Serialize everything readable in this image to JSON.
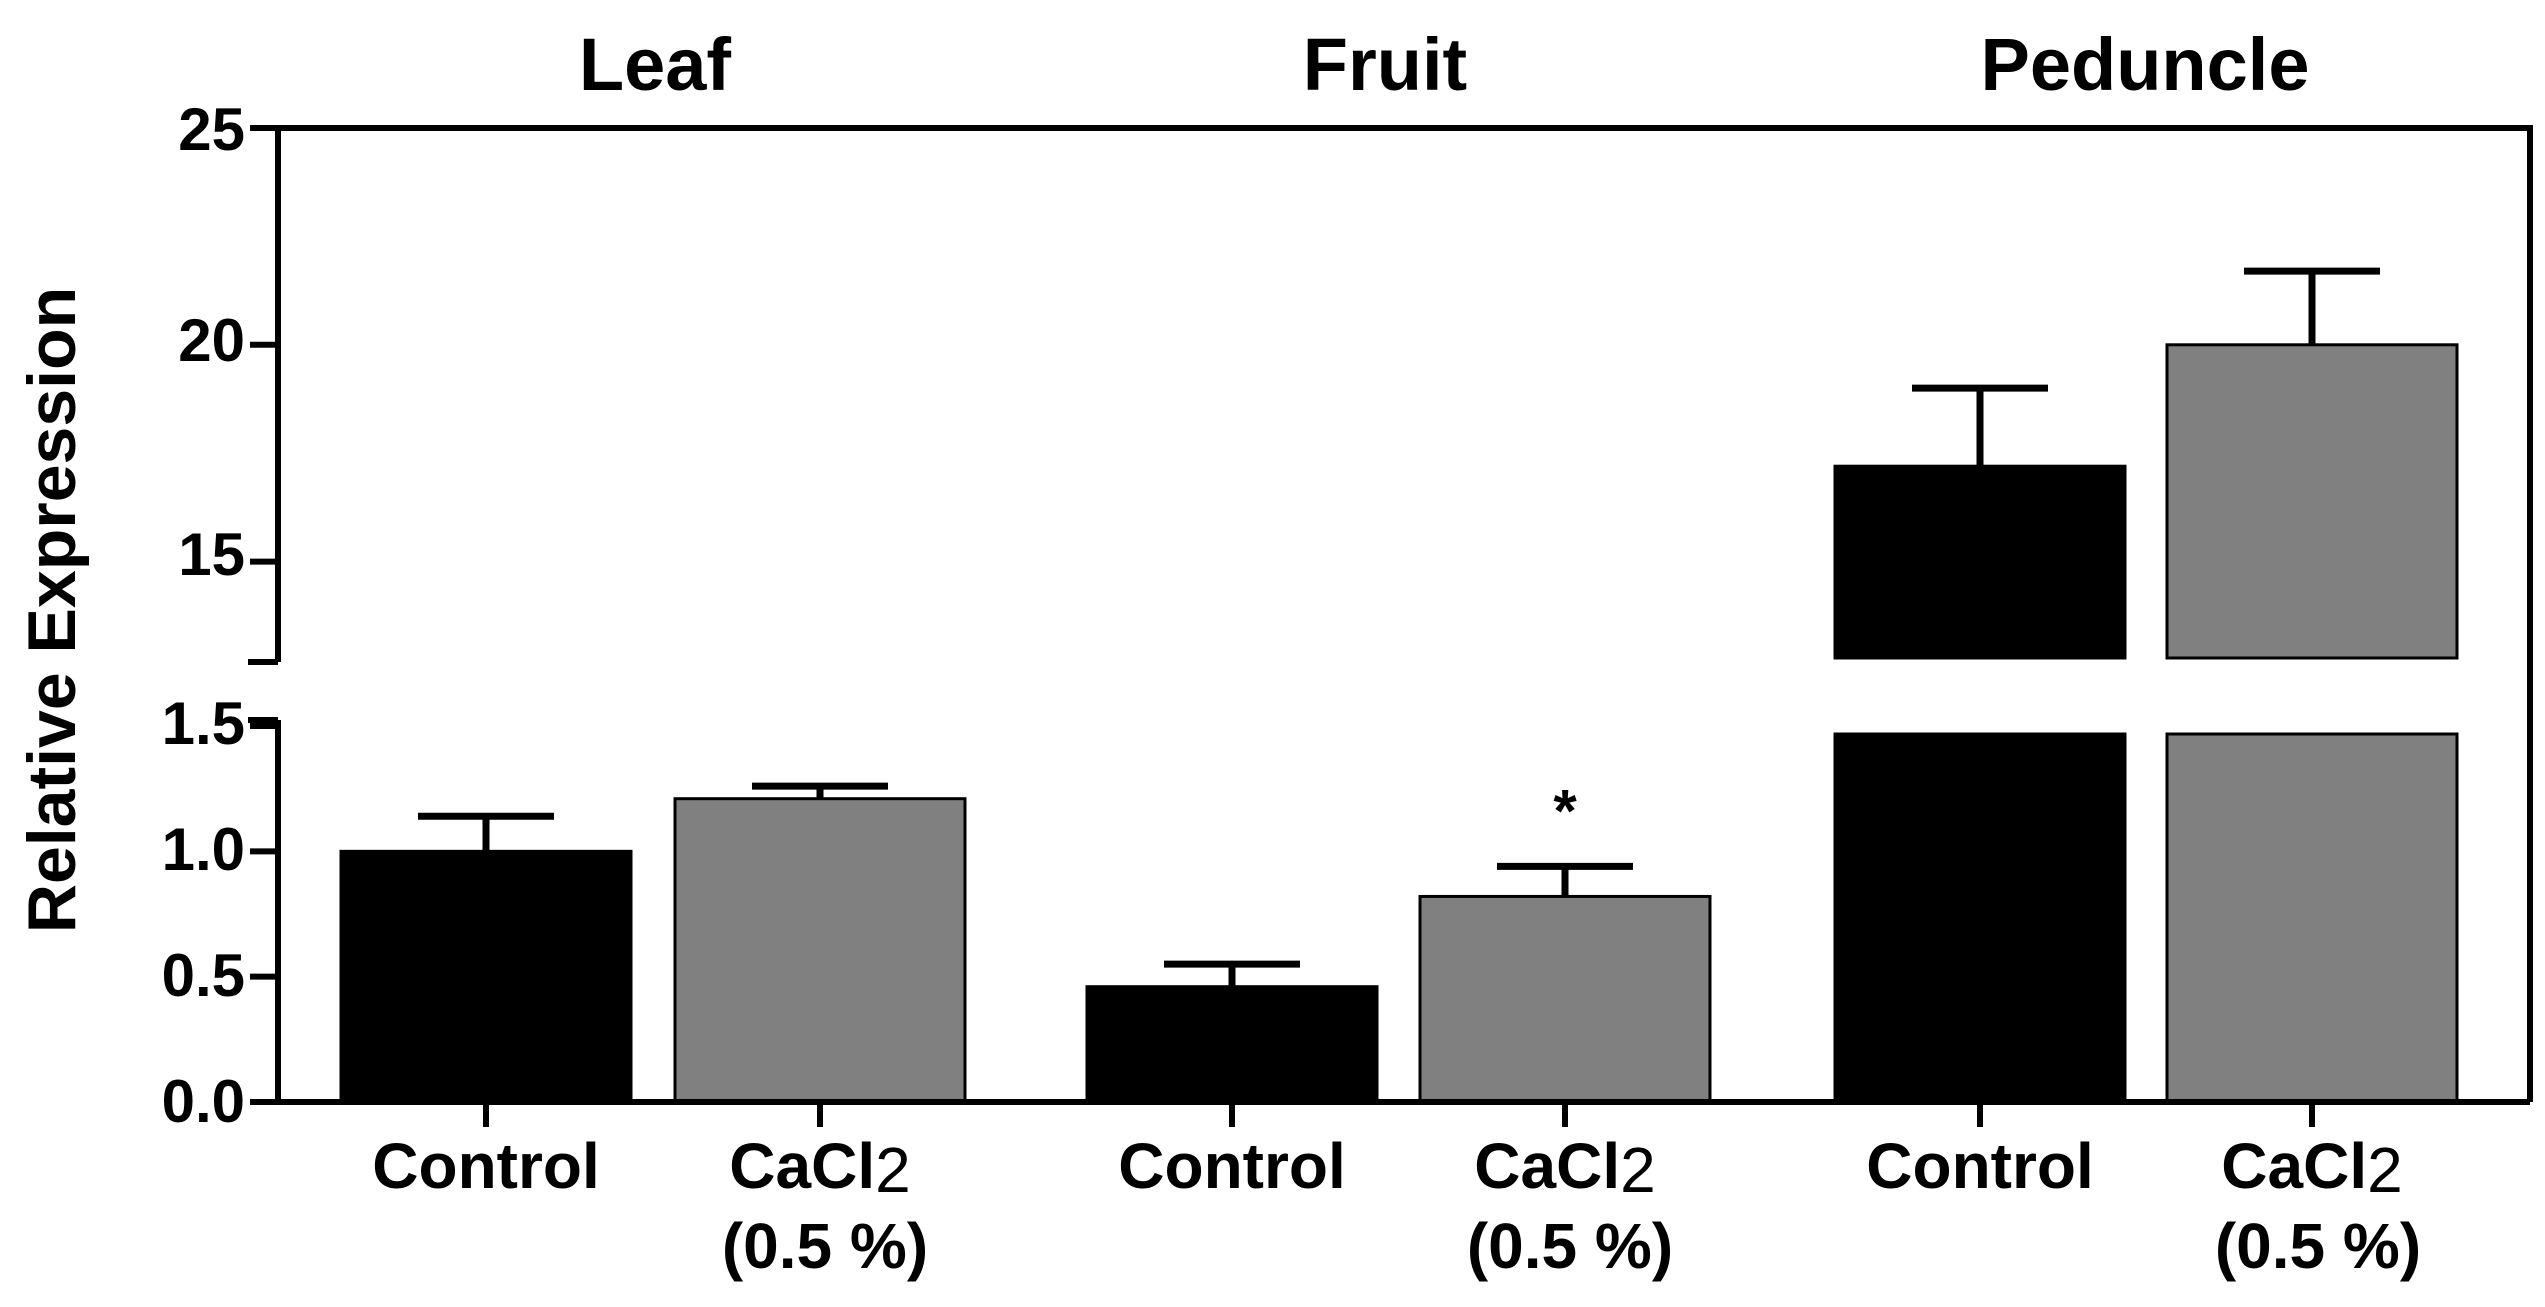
{
  "chart_data": {
    "type": "bar",
    "ylabel": "Relative Expression",
    "axis_break": true,
    "lower_range": [
      0,
      1.5
    ],
    "upper_range": [
      12.5,
      25
    ],
    "lower_ticks": [
      "0.0",
      "0.5",
      "1.0",
      "1.5"
    ],
    "upper_ticks": [
      "15",
      "20",
      "25"
    ],
    "groups": [
      {
        "title": "Leaf",
        "bars": [
          {
            "label_main": "Control",
            "label_sub": "",
            "value": 1.0,
            "error": 0.14,
            "significant": false,
            "color_key": "control"
          },
          {
            "label_main": "CaCl2",
            "label_sub": "(0.5 %)",
            "value": 1.21,
            "error": 0.05,
            "significant": false,
            "color_key": "treatment"
          }
        ]
      },
      {
        "title": "Fruit",
        "bars": [
          {
            "label_main": "Control",
            "label_sub": "",
            "value": 0.46,
            "error": 0.09,
            "significant": false,
            "color_key": "control"
          },
          {
            "label_main": "CaCl2",
            "label_sub": "(0.5 %)",
            "value": 0.82,
            "error": 0.12,
            "significant": true,
            "color_key": "treatment"
          }
        ]
      },
      {
        "title": "Peduncle",
        "bars": [
          {
            "label_main": "Control",
            "label_sub": "",
            "value": 17.2,
            "error": 1.8,
            "significant": false,
            "color_key": "control"
          },
          {
            "label_main": "CaCl2",
            "label_sub": "(0.5 %)",
            "value": 20.0,
            "error": 1.7,
            "significant": false,
            "color_key": "treatment"
          }
        ]
      }
    ],
    "significance_marker": "*",
    "colors": {
      "control": "#000000",
      "treatment": "#808080",
      "axis": "#000000"
    }
  }
}
